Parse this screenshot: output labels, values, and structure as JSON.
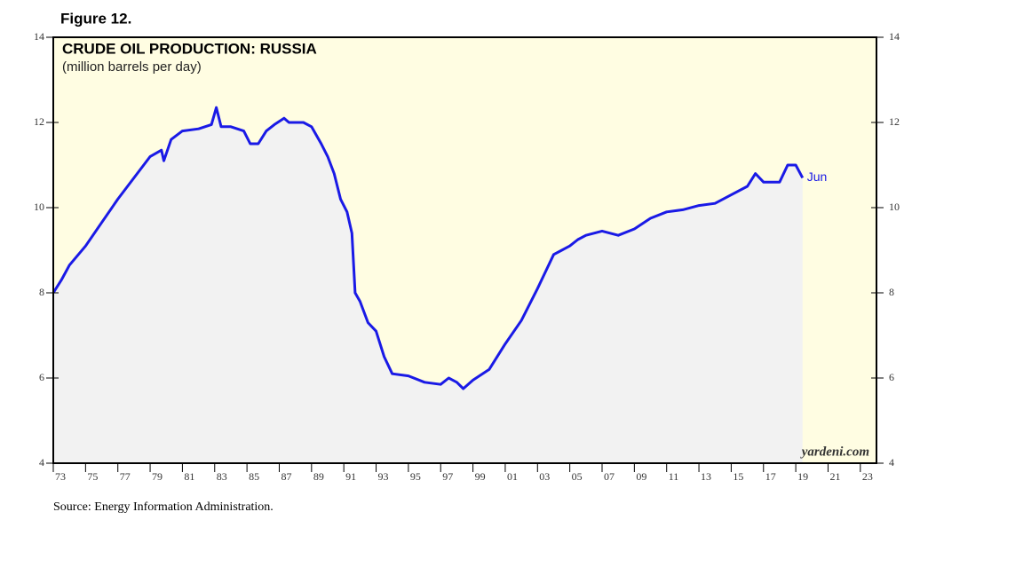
{
  "chart_data": {
    "type": "area",
    "figure": "Figure 12.",
    "title": "CRUDE OIL PRODUCTION: RUSSIA",
    "subtitle": "(million barrels per day)",
    "source": "Source: Energy Information Administration.",
    "watermark": "yardeni.com",
    "annotations": [
      {
        "text": "Jun",
        "x": 2019.42,
        "y": 10.7
      }
    ],
    "color": "#1a1ae6",
    "fill": "#f2f2f2",
    "background": "#fffde2",
    "xlim": [
      1973,
      2024
    ],
    "ylim": [
      4,
      14
    ],
    "yticks": [
      4,
      6,
      8,
      10,
      12,
      14
    ],
    "xticks": [
      {
        "value": 1973,
        "label": "73"
      },
      {
        "value": 1975,
        "label": "75"
      },
      {
        "value": 1977,
        "label": "77"
      },
      {
        "value": 1979,
        "label": "79"
      },
      {
        "value": 1981,
        "label": "81"
      },
      {
        "value": 1983,
        "label": "83"
      },
      {
        "value": 1985,
        "label": "85"
      },
      {
        "value": 1987,
        "label": "87"
      },
      {
        "value": 1989,
        "label": "89"
      },
      {
        "value": 1991,
        "label": "91"
      },
      {
        "value": 1993,
        "label": "93"
      },
      {
        "value": 1995,
        "label": "95"
      },
      {
        "value": 1997,
        "label": "97"
      },
      {
        "value": 1999,
        "label": "99"
      },
      {
        "value": 2001,
        "label": "01"
      },
      {
        "value": 2003,
        "label": "03"
      },
      {
        "value": 2005,
        "label": "05"
      },
      {
        "value": 2007,
        "label": "07"
      },
      {
        "value": 2009,
        "label": "09"
      },
      {
        "value": 2011,
        "label": "11"
      },
      {
        "value": 2013,
        "label": "13"
      },
      {
        "value": 2015,
        "label": "15"
      },
      {
        "value": 2017,
        "label": "17"
      },
      {
        "value": 2019,
        "label": "19"
      },
      {
        "value": 2021,
        "label": "21"
      },
      {
        "value": 2023,
        "label": "23"
      }
    ],
    "x": [
      1973.0,
      1973.5,
      1974,
      1975,
      1976,
      1977,
      1978,
      1979,
      1979.7,
      1979.85,
      1980.3,
      1981,
      1982,
      1982.8,
      1983.1,
      1983.4,
      1984,
      1984.8,
      1985.2,
      1985.7,
      1986.2,
      1986.7,
      1987.3,
      1987.6,
      1988.5,
      1989,
      1989.6,
      1990,
      1990.4,
      1990.8,
      1991.2,
      1991.5,
      1991.7,
      1992,
      1992.5,
      1993,
      1993.5,
      1994,
      1995,
      1996,
      1997,
      1997.5,
      1998,
      1998.4,
      1999,
      2000,
      2001,
      2002,
      2003,
      2003.5,
      2004,
      2004.5,
      2005,
      2005.5,
      2006,
      2007,
      2008,
      2009,
      2010,
      2011,
      2012,
      2013,
      2014,
      2015,
      2016,
      2016.5,
      2017,
      2018,
      2018.5,
      2019,
      2019.42
    ],
    "values": [
      8.0,
      8.3,
      8.65,
      9.1,
      9.65,
      10.2,
      10.7,
      11.2,
      11.35,
      11.1,
      11.6,
      11.8,
      11.85,
      11.95,
      12.35,
      11.9,
      11.9,
      11.8,
      11.5,
      11.5,
      11.8,
      11.95,
      12.1,
      12.0,
      12.0,
      11.9,
      11.5,
      11.2,
      10.8,
      10.2,
      9.9,
      9.4,
      8.0,
      7.8,
      7.3,
      7.1,
      6.5,
      6.1,
      6.05,
      5.9,
      5.85,
      6.0,
      5.9,
      5.75,
      5.95,
      6.2,
      6.8,
      7.35,
      8.1,
      8.5,
      8.9,
      9.0,
      9.1,
      9.25,
      9.35,
      9.45,
      9.35,
      9.5,
      9.75,
      9.9,
      9.95,
      10.05,
      10.1,
      10.3,
      10.5,
      10.8,
      10.6,
      10.6,
      11.0,
      11.0,
      10.7
    ]
  }
}
